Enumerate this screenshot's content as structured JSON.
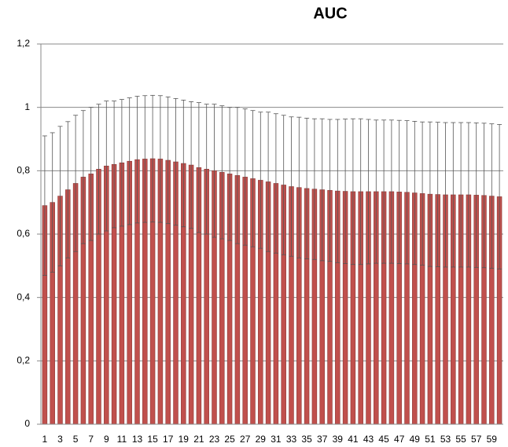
{
  "chart_data": {
    "type": "bar",
    "title": "AUC",
    "categories": [
      1,
      null,
      3,
      null,
      5,
      null,
      7,
      null,
      9,
      null,
      11,
      null,
      13,
      null,
      15,
      null,
      17,
      null,
      19,
      null,
      21,
      null,
      23,
      null,
      25,
      null,
      27,
      null,
      29,
      null,
      31,
      null,
      33,
      null,
      35,
      null,
      37,
      null,
      39,
      null,
      41,
      null,
      43,
      null,
      45,
      null,
      47,
      null,
      49,
      null,
      51,
      null,
      53,
      null,
      55,
      null,
      57,
      null,
      59,
      null
    ],
    "values": [
      0.69,
      0.7,
      0.72,
      0.74,
      0.76,
      0.78,
      0.79,
      0.805,
      0.815,
      0.82,
      0.825,
      0.83,
      0.835,
      0.837,
      0.838,
      0.837,
      0.833,
      0.828,
      0.823,
      0.818,
      0.81,
      0.805,
      0.8,
      0.795,
      0.79,
      0.785,
      0.78,
      0.775,
      0.77,
      0.765,
      0.76,
      0.755,
      0.75,
      0.747,
      0.744,
      0.742,
      0.74,
      0.738,
      0.736,
      0.735,
      0.734,
      0.734,
      0.734,
      0.734,
      0.734,
      0.734,
      0.733,
      0.732,
      0.73,
      0.728,
      0.726,
      0.725,
      0.724,
      0.724,
      0.724,
      0.724,
      0.723,
      0.722,
      0.72,
      0.718
    ],
    "errors": [
      0.22,
      0.22,
      0.22,
      0.215,
      0.215,
      0.21,
      0.21,
      0.205,
      0.205,
      0.2,
      0.2,
      0.2,
      0.2,
      0.2,
      0.2,
      0.2,
      0.2,
      0.2,
      0.2,
      0.2,
      0.205,
      0.205,
      0.21,
      0.21,
      0.21,
      0.215,
      0.215,
      0.215,
      0.215,
      0.22,
      0.22,
      0.22,
      0.22,
      0.222,
      0.222,
      0.222,
      0.224,
      0.224,
      0.226,
      0.228,
      0.23,
      0.23,
      0.228,
      0.226,
      0.226,
      0.226,
      0.226,
      0.226,
      0.226,
      0.226,
      0.228,
      0.228,
      0.228,
      0.228,
      0.228,
      0.228,
      0.228,
      0.228,
      0.228,
      0.228
    ],
    "color": "#c0504d",
    "ylim": [
      0,
      1.2
    ],
    "yticks": [
      0,
      {
        "value": 0.2,
        "label": "0,2"
      },
      {
        "value": 0.4,
        "label": "0,4"
      },
      {
        "value": 0.6,
        "label": "0,6"
      },
      {
        "value": 0.8,
        "label": "0,8"
      },
      1,
      {
        "value": 1.2,
        "label": "1,2"
      }
    ],
    "grid": true
  }
}
